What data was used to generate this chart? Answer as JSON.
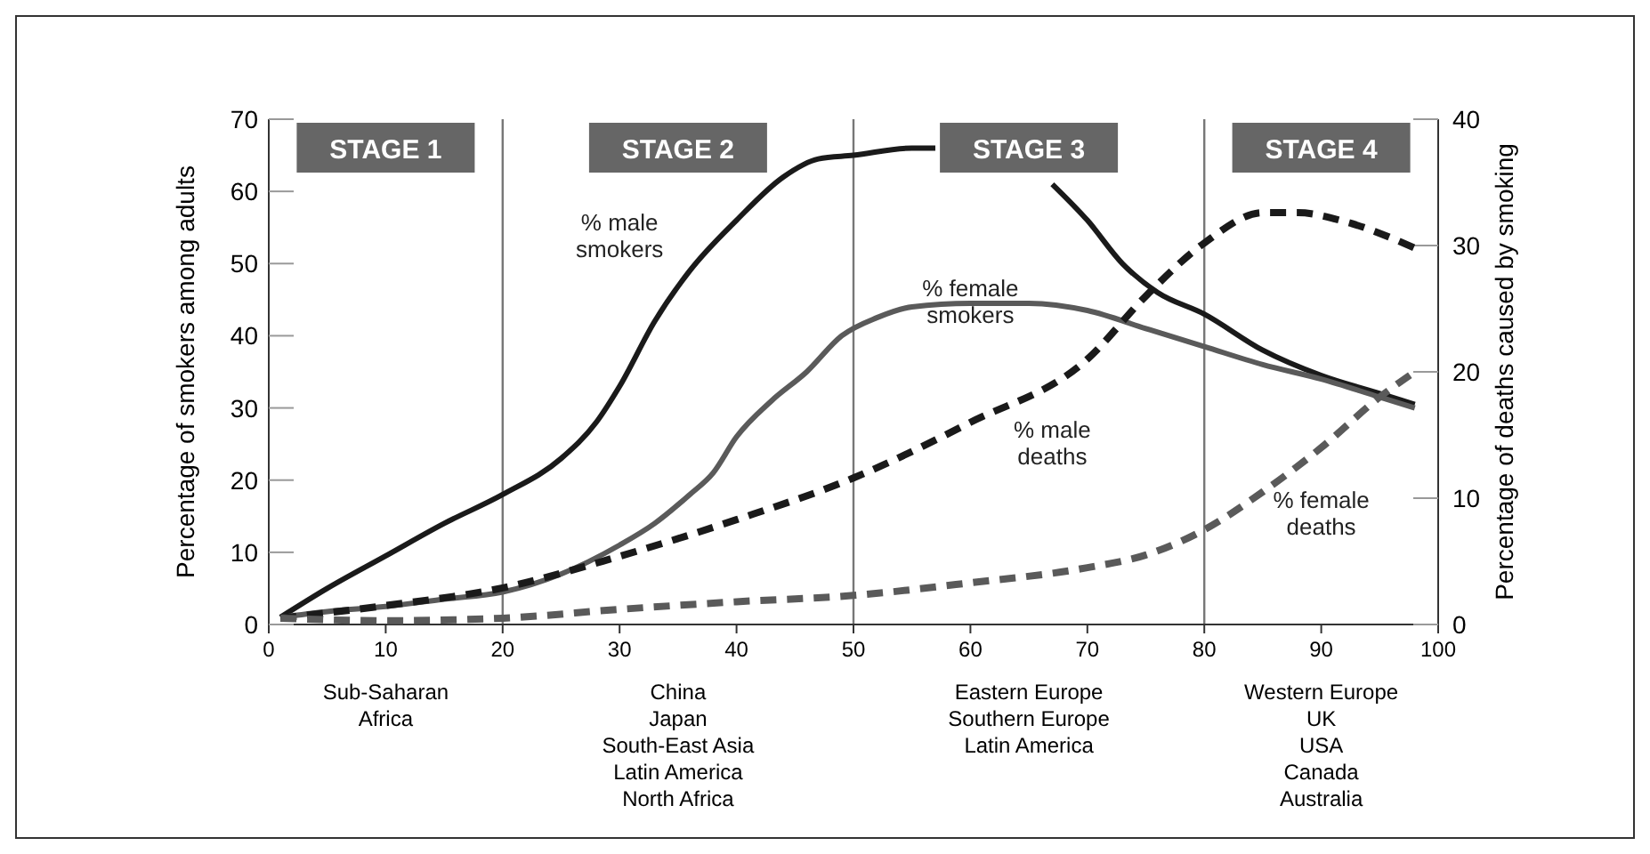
{
  "chart_data": {
    "type": "line",
    "xlabel": null,
    "ylabel": "Percentage of smokers among adults",
    "y2label": "Percentage of deaths caused by smoking",
    "xlim": [
      0,
      100
    ],
    "xticks": [
      0,
      10,
      20,
      30,
      40,
      50,
      60,
      70,
      80,
      90,
      100
    ],
    "ylim": [
      0,
      70
    ],
    "yticks": [
      0,
      10,
      20,
      30,
      40,
      50,
      60,
      70
    ],
    "y2lim": [
      0,
      40
    ],
    "y2ticks": [
      0,
      10,
      20,
      30,
      40
    ],
    "grid": false,
    "ref_lines": [
      {
        "axis": "x",
        "value": 20,
        "color": "#777777"
      },
      {
        "axis": "x",
        "value": 50,
        "color": "#777777"
      },
      {
        "axis": "x",
        "value": 80,
        "color": "#777777"
      }
    ],
    "annotations": [
      "STAGE 1",
      "STAGE 2",
      "STAGE 3",
      "STAGE 4",
      "Sub-Saharan\nAfrica",
      "China\nJapan\nSouth-East Asia\nLatin America\nNorth Africa",
      "Eastern Europe\nSouthern Europe\nLatin America",
      "Western Europe\nUK\nUSA\nCanada\nAustralia"
    ],
    "series": [
      {
        "name": "% male smokers",
        "color": "#1a1a1a",
        "line_style": "solid",
        "x": [
          1,
          5,
          10,
          15,
          20,
          25,
          28,
          30,
          33,
          36,
          40,
          44,
          47,
          50,
          55,
          57,
          60,
          63,
          67,
          70,
          73,
          76,
          80,
          85,
          90,
          95,
          98
        ],
        "values": [
          1,
          5,
          9.5,
          14,
          18,
          23,
          28,
          33,
          42,
          49,
          56,
          62,
          64.5,
          65,
          66,
          66,
          null,
          null,
          61,
          56,
          50,
          46,
          43,
          38,
          34.5,
          32,
          30.5
        ]
      },
      {
        "name": "% female smokers",
        "color": "#5a5a5a",
        "line_style": "solid",
        "x": [
          1,
          5,
          10,
          15,
          20,
          25,
          30,
          33,
          36,
          38,
          40,
          43,
          46,
          49,
          52,
          55,
          60,
          65,
          70,
          75,
          80,
          85,
          90,
          95,
          98
        ],
        "values": [
          1,
          1.8,
          2.5,
          3.5,
          4.5,
          7,
          11,
          14,
          18,
          21,
          26,
          31,
          35,
          40,
          42.5,
          44,
          44.5,
          44.5,
          43.5,
          41,
          38.5,
          36,
          34,
          31.5,
          30
        ]
      },
      {
        "name": "% male deaths",
        "color": "#1a1a1a",
        "line_style": "dashed",
        "axis": "y2",
        "x": [
          1,
          10,
          20,
          30,
          40,
          50,
          60,
          70,
          75,
          80,
          85,
          88,
          92,
          98
        ],
        "values": [
          0.5,
          1.5,
          2.9,
          5.4,
          8.3,
          11.6,
          16,
          21,
          26,
          30.2,
          32.6,
          32.6,
          31.9,
          29.8
        ]
      },
      {
        "name": "% female deaths",
        "color": "#5a5a5a",
        "line_style": "dashed",
        "axis": "y2",
        "x": [
          1,
          10,
          20,
          30,
          40,
          50,
          60,
          70,
          75,
          80,
          85,
          90,
          95,
          98
        ],
        "values": [
          0.5,
          0.3,
          0.5,
          1.2,
          1.8,
          2.3,
          3.3,
          4.5,
          5.5,
          7.5,
          10.5,
          14,
          18,
          20
        ]
      }
    ]
  }
}
